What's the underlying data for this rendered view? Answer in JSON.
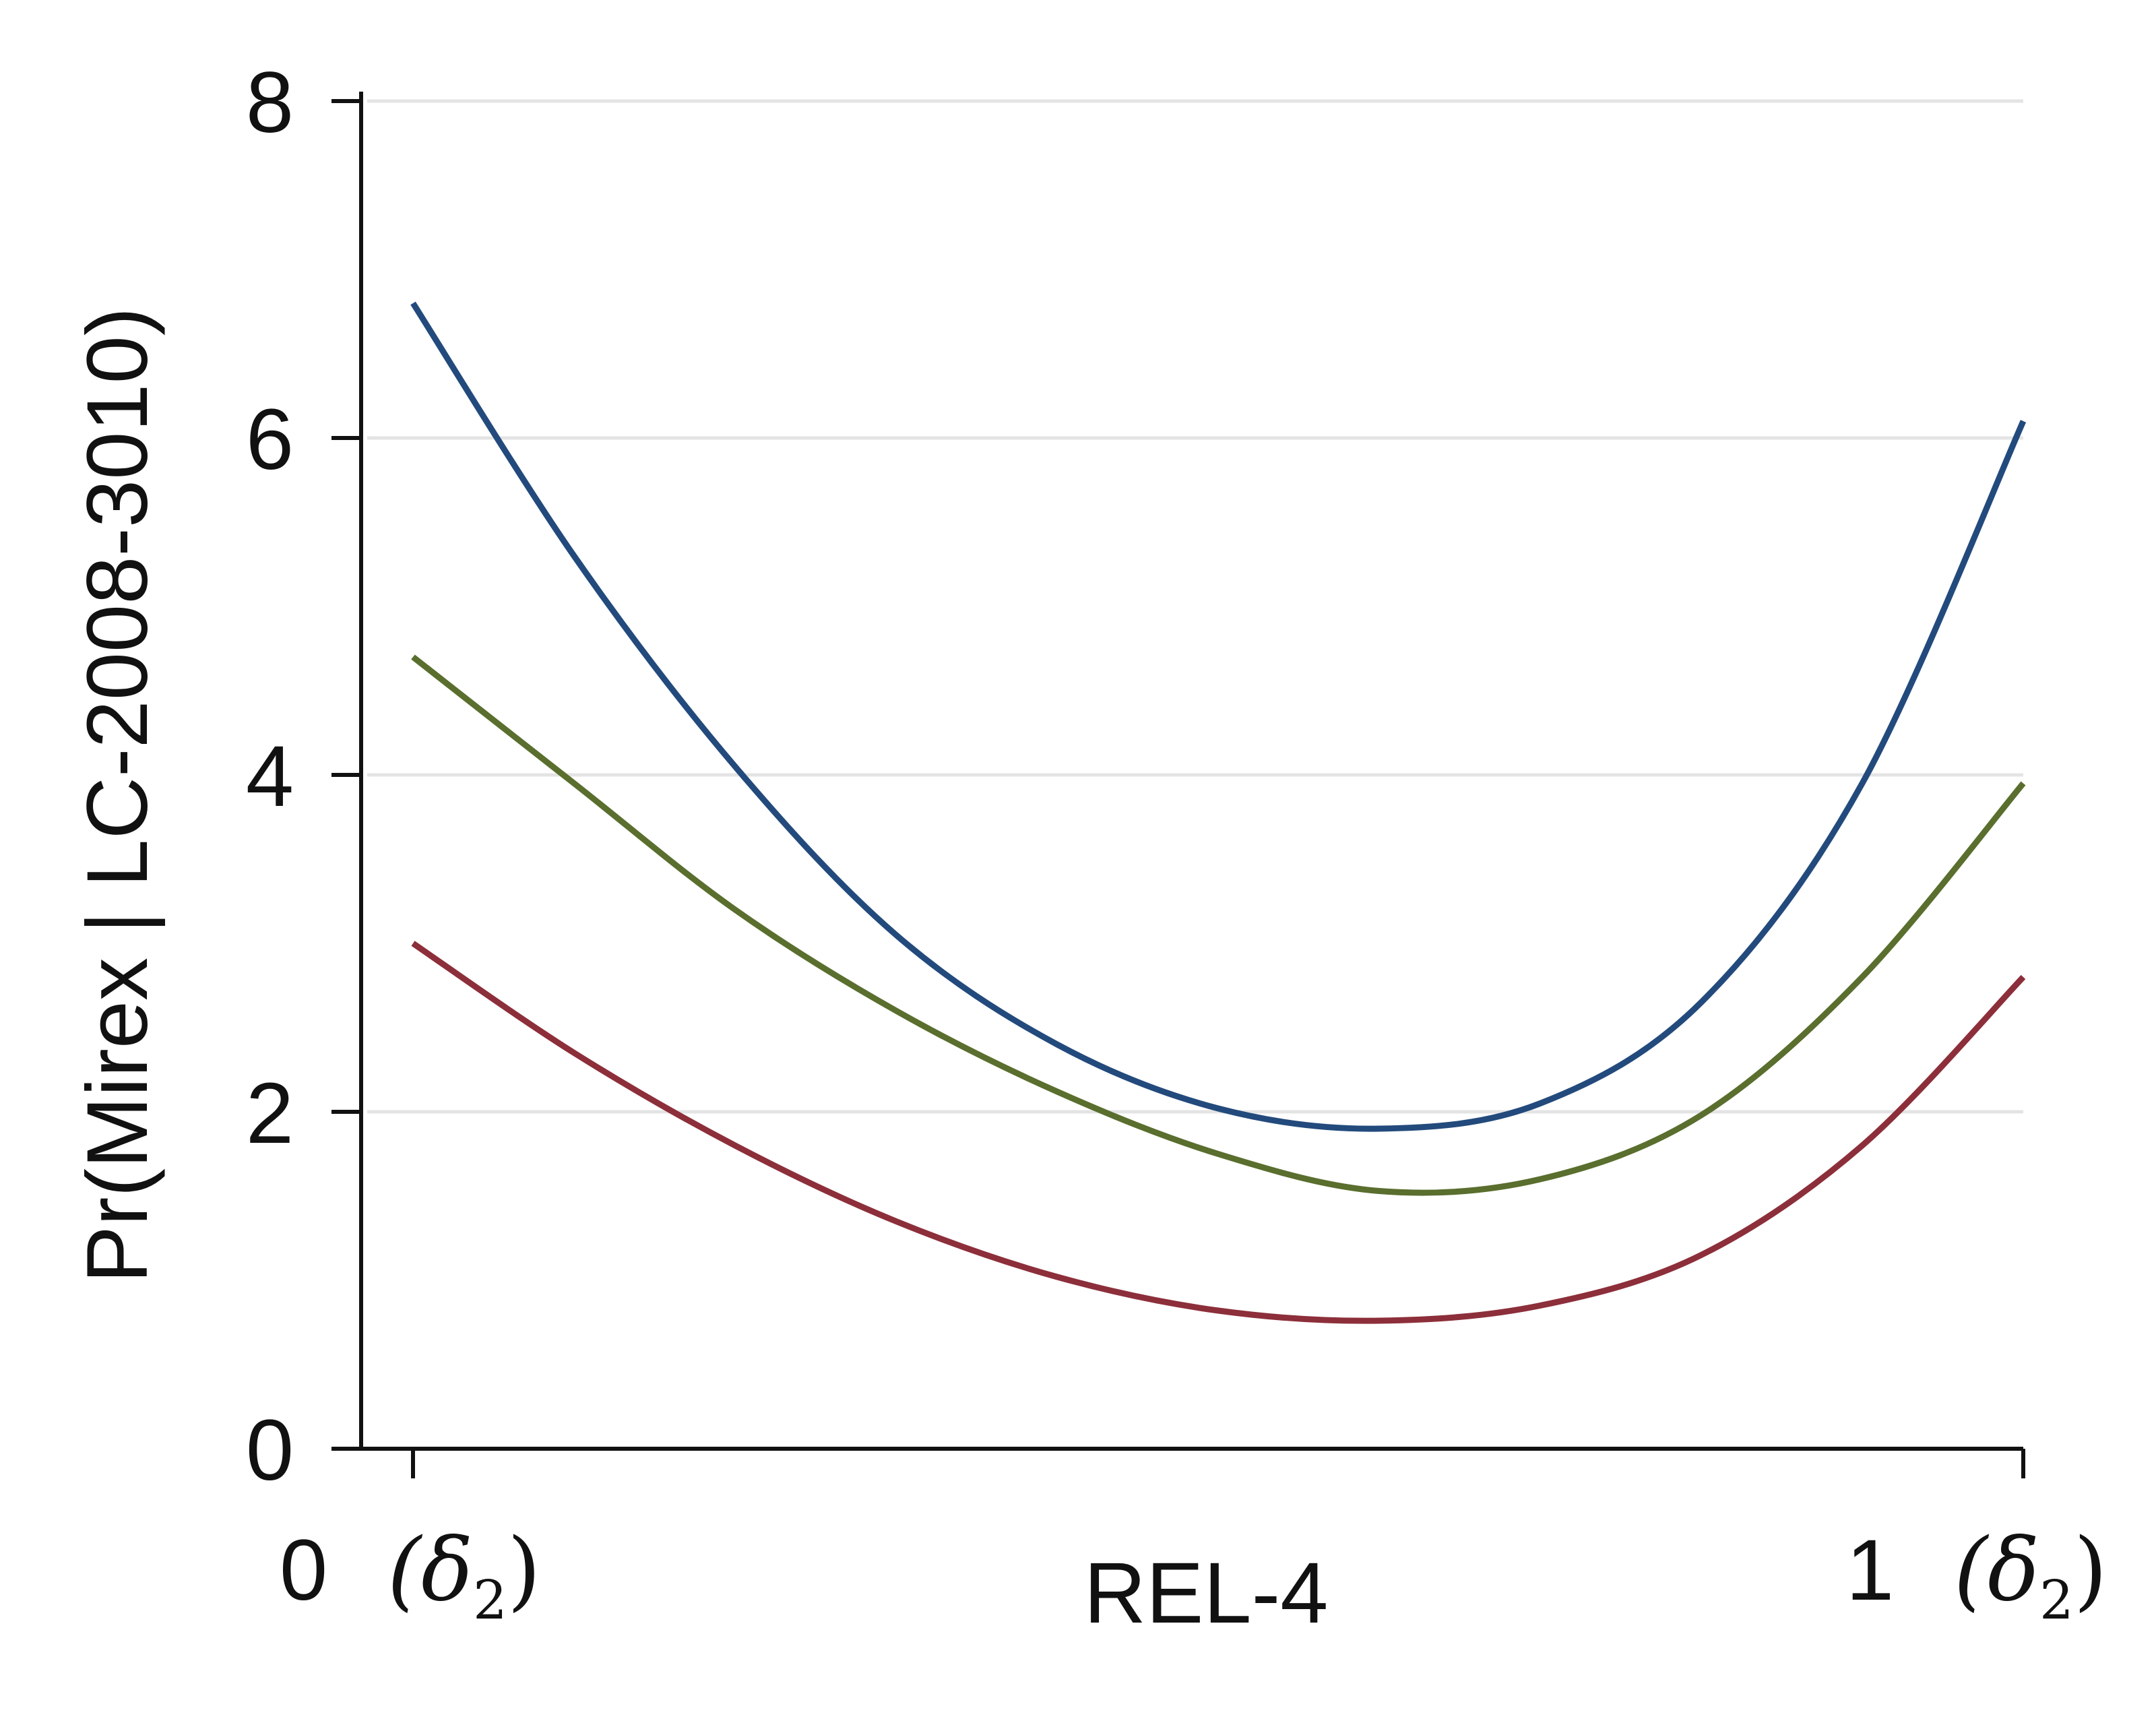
{
  "chart_data": {
    "type": "line",
    "title": "",
    "xlabel": "REL-4",
    "ylabel": "Pr(Mirex | LC-2008-3010)",
    "xlim": [
      0,
      1
    ],
    "ylim": [
      0,
      8
    ],
    "yticks": [
      0,
      2,
      4,
      6,
      8
    ],
    "xticks": [
      {
        "value": 0,
        "number": "0",
        "unit": "(δ",
        "sub": "2",
        "close": ")"
      },
      {
        "value": 1,
        "number": "1",
        "unit": "(δ",
        "sub": "2",
        "close": ")"
      }
    ],
    "grid": {
      "horizontal": true,
      "vertical": false
    },
    "legend": "none",
    "series": [
      {
        "color": "#234a7c",
        "x": [
          0,
          0.1,
          0.2,
          0.3,
          0.4,
          0.5,
          0.6,
          0.7,
          0.8,
          0.9,
          1.0
        ],
        "y": [
          6.8,
          5.3,
          4.05,
          3.05,
          2.4,
          2.02,
          1.9,
          2.05,
          2.65,
          3.95,
          6.1
        ]
      },
      {
        "color": "#5a6e2e",
        "x": [
          0,
          0.1,
          0.2,
          0.3,
          0.4,
          0.5,
          0.6,
          0.7,
          0.8,
          0.9,
          1.0
        ],
        "y": [
          4.7,
          3.95,
          3.2,
          2.6,
          2.12,
          1.75,
          1.53,
          1.6,
          1.98,
          2.8,
          3.95
        ]
      },
      {
        "color": "#8c2f3a",
        "x": [
          0,
          0.1,
          0.2,
          0.3,
          0.4,
          0.5,
          0.6,
          0.7,
          0.8,
          0.9,
          1.0
        ],
        "y": [
          3.0,
          2.35,
          1.8,
          1.35,
          1.02,
          0.82,
          0.76,
          0.85,
          1.15,
          1.8,
          2.8
        ]
      }
    ]
  }
}
